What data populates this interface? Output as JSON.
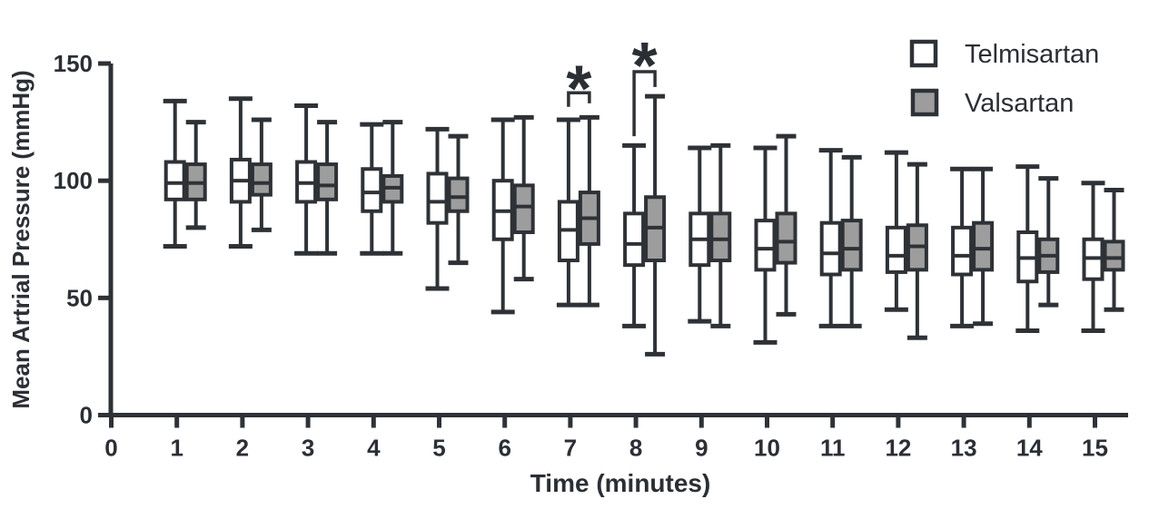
{
  "figure": {
    "x_axis_title": "Time (minutes)",
    "y_axis_title": "Mean Artrial Pressure (mmHg)"
  },
  "legend": {
    "position": "top-right",
    "items": [
      {
        "label": "Telmisartan",
        "fill": "#ffffff"
      },
      {
        "label": "Valsartan",
        "fill": "#9d9d9d"
      }
    ]
  },
  "chart_data": {
    "type": "boxplot",
    "grouping": "grouped-pairs",
    "title": "",
    "xlabel": "Time (minutes)",
    "ylabel": "Mean Artrial Pressure (mmHg)",
    "x_axis": {
      "ticks": [
        0,
        1,
        2,
        3,
        4,
        5,
        6,
        7,
        8,
        9,
        10,
        11,
        12,
        13,
        14,
        15
      ],
      "range": [
        0,
        15.5
      ]
    },
    "y_axis": {
      "ticks": [
        0,
        50,
        100,
        150
      ],
      "range": [
        0,
        150
      ],
      "unit": "mmHg"
    },
    "categories": [
      1,
      2,
      3,
      4,
      5,
      6,
      7,
      8,
      9,
      10,
      11,
      12,
      13,
      14,
      15
    ],
    "series": [
      {
        "name": "Telmisartan",
        "fill": "#ffffff",
        "boxes": [
          {
            "t": 1,
            "min": 72,
            "q1": 92,
            "median": 99,
            "q3": 108,
            "max": 134
          },
          {
            "t": 2,
            "min": 72,
            "q1": 91,
            "median": 100,
            "q3": 109,
            "max": 135
          },
          {
            "t": 3,
            "min": 69,
            "q1": 91,
            "median": 99,
            "q3": 108,
            "max": 132
          },
          {
            "t": 4,
            "min": 69,
            "q1": 87,
            "median": 95,
            "q3": 105,
            "max": 124
          },
          {
            "t": 5,
            "min": 54,
            "q1": 82,
            "median": 91,
            "q3": 103,
            "max": 122
          },
          {
            "t": 6,
            "min": 44,
            "q1": 75,
            "median": 87,
            "q3": 100,
            "max": 126
          },
          {
            "t": 7,
            "min": 47,
            "q1": 66,
            "median": 79,
            "q3": 91,
            "max": 126
          },
          {
            "t": 8,
            "min": 38,
            "q1": 64,
            "median": 73,
            "q3": 86,
            "max": 115
          },
          {
            "t": 9,
            "min": 40,
            "q1": 64,
            "median": 75,
            "q3": 86,
            "max": 114
          },
          {
            "t": 10,
            "min": 31,
            "q1": 62,
            "median": 71,
            "q3": 83,
            "max": 114
          },
          {
            "t": 11,
            "min": 38,
            "q1": 60,
            "median": 69,
            "q3": 82,
            "max": 113
          },
          {
            "t": 12,
            "min": 45,
            "q1": 61,
            "median": 68,
            "q3": 80,
            "max": 112
          },
          {
            "t": 13,
            "min": 38,
            "q1": 60,
            "median": 68,
            "q3": 80,
            "max": 105
          },
          {
            "t": 14,
            "min": 36,
            "q1": 57,
            "median": 67,
            "q3": 78,
            "max": 106
          },
          {
            "t": 15,
            "min": 36,
            "q1": 58,
            "median": 67,
            "q3": 75,
            "max": 99
          }
        ]
      },
      {
        "name": "Valsartan",
        "fill": "#9d9d9d",
        "boxes": [
          {
            "t": 1,
            "min": 80,
            "q1": 92,
            "median": 99,
            "q3": 107,
            "max": 125
          },
          {
            "t": 2,
            "min": 79,
            "q1": 94,
            "median": 99,
            "q3": 107,
            "max": 126
          },
          {
            "t": 3,
            "min": 69,
            "q1": 92,
            "median": 98,
            "q3": 107,
            "max": 125
          },
          {
            "t": 4,
            "min": 69,
            "q1": 91,
            "median": 97,
            "q3": 102,
            "max": 125
          },
          {
            "t": 5,
            "min": 65,
            "q1": 87,
            "median": 93,
            "q3": 101,
            "max": 119
          },
          {
            "t": 6,
            "min": 58,
            "q1": 78,
            "median": 89,
            "q3": 98,
            "max": 127
          },
          {
            "t": 7,
            "min": 47,
            "q1": 73,
            "median": 84,
            "q3": 95,
            "max": 127
          },
          {
            "t": 8,
            "min": 26,
            "q1": 66,
            "median": 80,
            "q3": 93,
            "max": 136
          },
          {
            "t": 9,
            "min": 38,
            "q1": 66,
            "median": 75,
            "q3": 86,
            "max": 115
          },
          {
            "t": 10,
            "min": 43,
            "q1": 65,
            "median": 74,
            "q3": 86,
            "max": 119
          },
          {
            "t": 11,
            "min": 38,
            "q1": 62,
            "median": 71,
            "q3": 83,
            "max": 110
          },
          {
            "t": 12,
            "min": 33,
            "q1": 62,
            "median": 72,
            "q3": 81,
            "max": 107
          },
          {
            "t": 13,
            "min": 39,
            "q1": 62,
            "median": 71,
            "q3": 82,
            "max": 105
          },
          {
            "t": 14,
            "min": 47,
            "q1": 61,
            "median": 68,
            "q3": 75,
            "max": 101
          },
          {
            "t": 15,
            "min": 45,
            "q1": 62,
            "median": 67,
            "q3": 74,
            "max": 96
          }
        ]
      }
    ],
    "annotations": [
      {
        "type": "significance",
        "label": "*",
        "category": 7,
        "bar": 137.5,
        "left_end": 131.5,
        "right_end": 133.0,
        "star": 145.5
      },
      {
        "type": "significance",
        "label": "*",
        "category": 8,
        "bar": 146.5,
        "left_end": 119.0,
        "right_end": 140.0,
        "star": 155.5
      }
    ],
    "colors": {
      "stroke": "#2e3237",
      "text": "#2b2f35",
      "background": "#ffffff"
    },
    "legend_position": "top-right",
    "grid": false
  }
}
